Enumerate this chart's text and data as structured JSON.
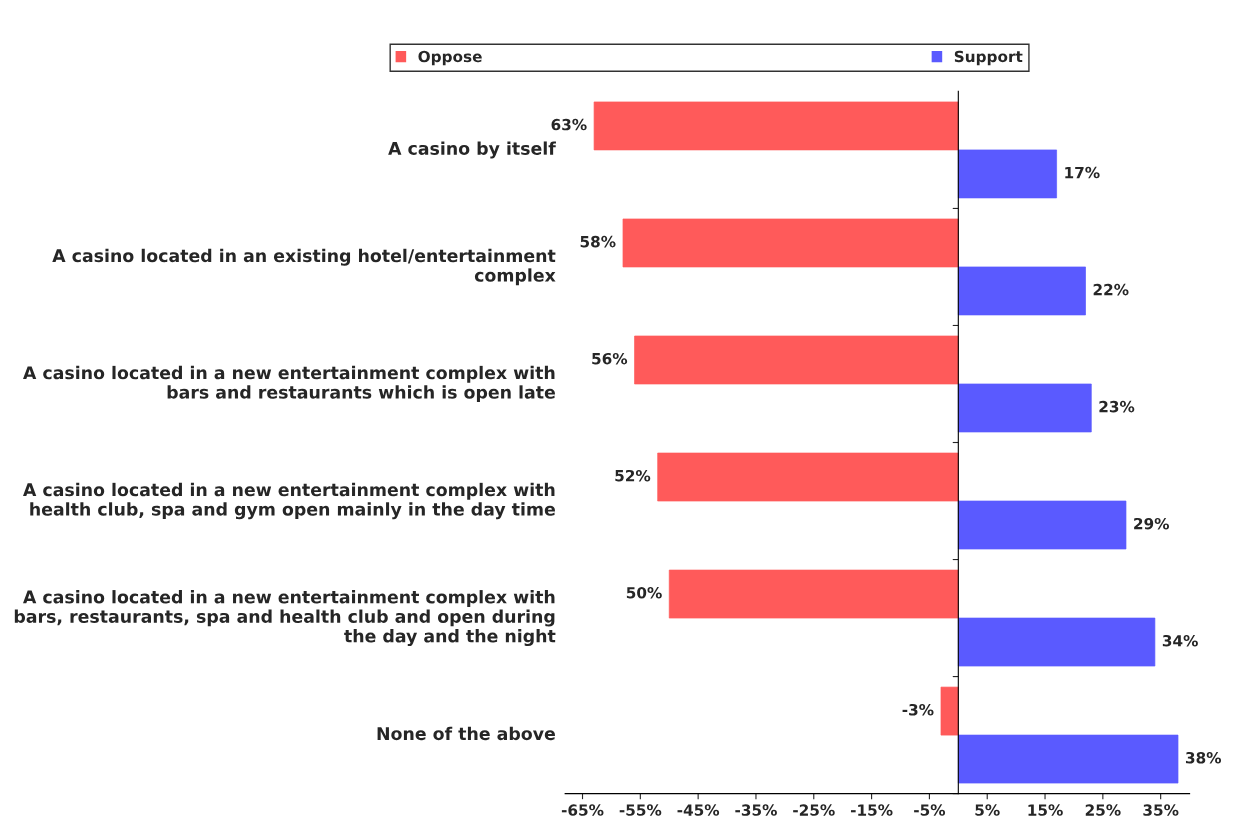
{
  "chart_data": {
    "type": "bar",
    "orientation": "horizontal",
    "categories": [
      "A casino by itself",
      "A casino located in an existing hotel/entertainment\ncomplex",
      "A casino located in a new entertainment complex with\nbars and restaurants which is open late",
      "A casino located in a new entertainment complex with\nhealth club, spa and gym open mainly in the day time",
      "A casino located in a new entertainment complex with\nbars, restaurants, spa and health club and open during\nthe day and the night",
      "None of the above"
    ],
    "series": [
      {
        "name": "Oppose",
        "color": "#ff5a5a",
        "values": [
          63,
          58,
          56,
          52,
          50,
          -3
        ],
        "base": [
          -63,
          -58,
          -56,
          -52,
          -50,
          0
        ],
        "value_labels": [
          "63%",
          "58%",
          "56%",
          "52%",
          "50%",
          "-3%"
        ]
      },
      {
        "name": "Support",
        "color": "#5a5aff",
        "values": [
          17,
          22,
          23,
          29,
          34,
          38
        ],
        "value_labels": [
          "17%",
          "22%",
          "23%",
          "29%",
          "34%",
          "38%"
        ]
      }
    ],
    "xlim": [
      -68,
      40
    ],
    "xticks": [
      {
        "value": -65,
        "label": "-65%"
      },
      {
        "value": -55,
        "label": "-55%"
      },
      {
        "value": -45,
        "label": "-45%"
      },
      {
        "value": -35,
        "label": "-35%"
      },
      {
        "value": -25,
        "label": "-25%"
      },
      {
        "value": -15,
        "label": "-15%"
      },
      {
        "value": -5,
        "label": "-5%"
      },
      {
        "value": 5,
        "label": "5%"
      },
      {
        "value": 15,
        "label": "15%"
      },
      {
        "value": 25,
        "label": "25%"
      },
      {
        "value": 35,
        "label": "35%"
      }
    ],
    "legend": "top",
    "grid": false
  }
}
